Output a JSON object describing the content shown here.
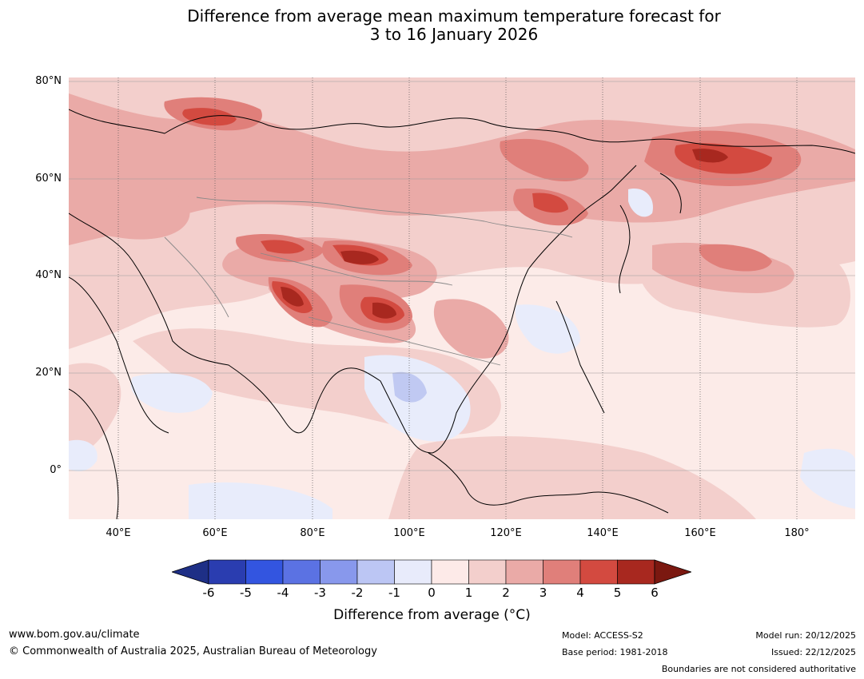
{
  "title": {
    "line1": "Difference from average mean maximum temperature forecast for",
    "line2": "3 to 16 January 2026"
  },
  "map": {
    "lat_labels": [
      "80°N",
      "60°N",
      "40°N",
      "20°N",
      "0°"
    ],
    "lon_labels": [
      "40°E",
      "60°E",
      "80°E",
      "100°E",
      "120°E",
      "140°E",
      "160°E",
      "180°"
    ],
    "extent": {
      "lon_min": 30,
      "lon_max": 191,
      "lat_min": -10,
      "lat_max": 81
    },
    "colors": {
      "background": "#fcebe8",
      "c1": "#f3cfcc",
      "c2": "#eaaaa7",
      "c3": "#e07f7a",
      "c4": "#d34a40",
      "c5": "#a8281f",
      "c6": "#7b1810",
      "b0": "#e8ecfb",
      "b1": "#c0c9f2"
    }
  },
  "colorbar": {
    "ticks": [
      "-6",
      "-5",
      "-4",
      "-3",
      "-2",
      "-1",
      "0",
      "1",
      "2",
      "3",
      "4",
      "5",
      "6"
    ],
    "colors": [
      "#1e2f86",
      "#2a3db0",
      "#3355e0",
      "#5b72e3",
      "#8898ec",
      "#bcc6f4",
      "#e8ebfb",
      "#fdeae8",
      "#f3cfcc",
      "#eaaaa7",
      "#e07f7a",
      "#d34a40",
      "#a8281f",
      "#7b1810"
    ],
    "label": "Difference from average (°C)"
  },
  "footer": {
    "url": "www.bom.gov.au/climate",
    "copyright": "© Commonwealth of Australia 2025, Australian Bureau of Meteorology",
    "model": "Model: ACCESS-S2",
    "base_period": "Base period: 1981-2018",
    "model_run": "Model run: 20/12/2025",
    "issued": "Issued: 22/12/2025",
    "disclaimer": "Boundaries are not considered authoritative"
  }
}
